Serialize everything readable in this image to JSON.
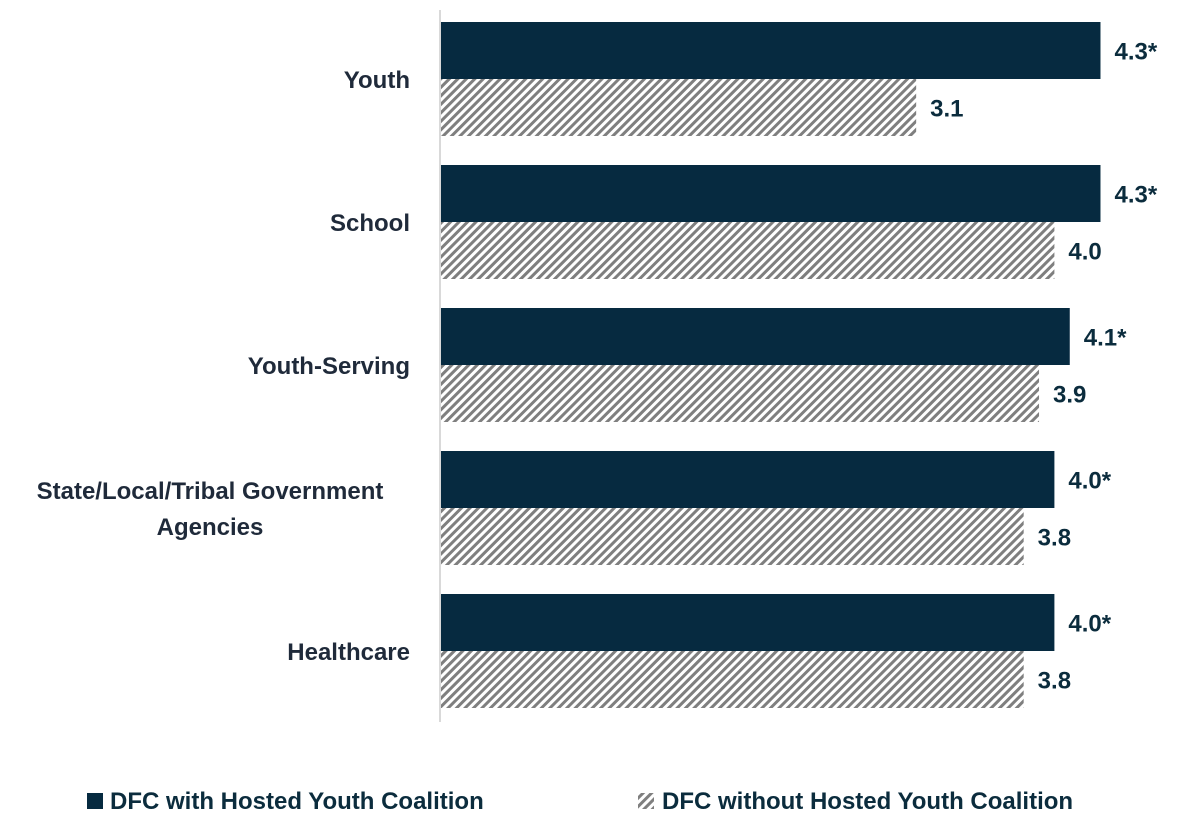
{
  "chart_data": {
    "type": "bar",
    "orientation": "horizontal",
    "categories": [
      [
        "Youth"
      ],
      [
        "School"
      ],
      [
        "Youth-Serving"
      ],
      [
        "State/Local/Tribal Government",
        "Agencies"
      ],
      [
        "Healthcare"
      ]
    ],
    "series": [
      {
        "name": "DFC with Hosted Youth Coalition",
        "values": [
          4.3,
          4.3,
          4.1,
          4.0,
          4.0
        ],
        "data_labels": [
          "4.3*",
          "4.3*",
          "4.1*",
          "4.0*",
          "4.0*"
        ],
        "color": "#062a40",
        "pattern": "solid"
      },
      {
        "name": "DFC without Hosted Youth Coalition",
        "values": [
          3.1,
          4.0,
          3.9,
          3.8,
          3.8
        ],
        "data_labels": [
          "3.1",
          "4.0",
          "3.9",
          "3.8",
          "3.8"
        ],
        "color": "#7f7f7f",
        "pattern": "diagonal-stripes"
      }
    ],
    "title": "",
    "xlabel": "",
    "ylabel": "",
    "grid": false,
    "legend": "bottom"
  }
}
